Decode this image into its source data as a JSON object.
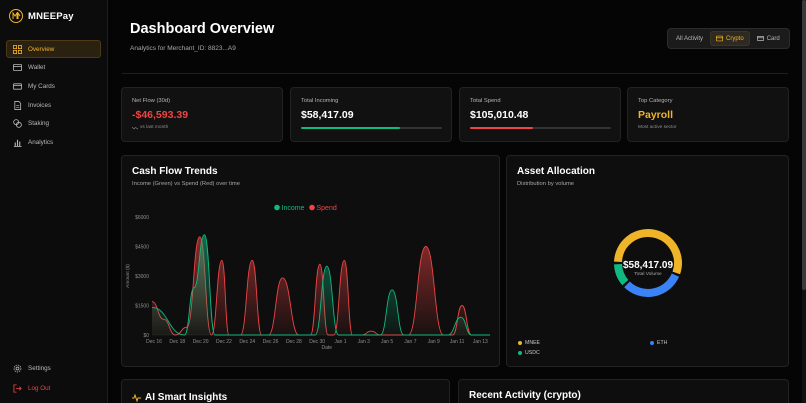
{
  "brand": {
    "name": "MNEEPay"
  },
  "sidebar": {
    "items": [
      {
        "label": "Overview",
        "icon": "grid-icon",
        "active": true
      },
      {
        "label": "Wallet",
        "icon": "wallet-icon"
      },
      {
        "label": "My Cards",
        "icon": "card-icon"
      },
      {
        "label": "Invoices",
        "icon": "document-icon"
      },
      {
        "label": "Staking",
        "icon": "coins-icon"
      },
      {
        "label": "Analytics",
        "icon": "bar-chart-icon"
      }
    ],
    "bottom": [
      {
        "label": "Settings",
        "icon": "gear-icon"
      },
      {
        "label": "Log Out",
        "icon": "logout-icon"
      }
    ]
  },
  "header": {
    "title": "Dashboard Overview",
    "subtitle": "Analytics for Merchant_ID: 8823...A9",
    "filters": [
      {
        "label": "All Activity",
        "active": false
      },
      {
        "label": "Crypto",
        "active": true,
        "icon": "wallet-icon"
      },
      {
        "label": "Card",
        "active": false,
        "icon": "card-icon"
      }
    ]
  },
  "stats": {
    "net_flow": {
      "label": "Net Flow (30d)",
      "value": "-$46,593.39",
      "foot": "vs last month"
    },
    "incoming": {
      "label": "Total Incoming",
      "value": "$58,417.09",
      "progress": 0.7
    },
    "spend": {
      "label": "Total Spend",
      "value": "$105,010.48",
      "progress": 0.45
    },
    "top_category": {
      "label": "Top Category",
      "value": "Payroll",
      "foot": "Most active sector"
    }
  },
  "cashflow": {
    "title": "Cash Flow Trends",
    "subtitle": "Income (Green) vs Spend (Red) over time"
  },
  "allocation": {
    "title": "Asset Allocation",
    "subtitle": "Distribution by volume",
    "total": "$58,417.09",
    "total_label": "Total Volume",
    "legend": [
      "MNEE",
      "ETH",
      "USDC"
    ]
  },
  "insights": {
    "title": "AI Smart Insights"
  },
  "recent": {
    "title": "Recent Activity (crypto)"
  },
  "colors": {
    "accent": "#f0b429",
    "income": "#10b981",
    "spend": "#ef4444",
    "eth": "#3b82f6"
  },
  "chart_data": [
    {
      "type": "area",
      "title": "",
      "xlabel": "Date",
      "ylabel": "Amount ($)",
      "x": [
        "Dec 16",
        "Dec 18",
        "Dec 20",
        "Dec 22",
        "Dec 24",
        "Dec 26",
        "Dec 28",
        "Dec 30",
        "Jan 1",
        "Jan 3",
        "Jan 5",
        "Jan 7",
        "Jan 9",
        "Jan 11",
        "Jan 13"
      ],
      "yticks": [
        "$0",
        "$1500",
        "$3000",
        "$4500",
        "$6000"
      ],
      "ylim": [
        0,
        6000
      ],
      "legend": [
        "Income",
        "Spend"
      ],
      "legend_position": "top-center",
      "series": [
        {
          "name": "Income",
          "points": [
            [
              0,
              1400
            ],
            [
              1.4,
              0
            ],
            [
              1.8,
              2400
            ],
            [
              2.25,
              5100
            ],
            [
              2.7,
              0
            ],
            [
              7.0,
              0
            ],
            [
              7.5,
              3500
            ],
            [
              8.0,
              0
            ],
            [
              9.8,
              0
            ],
            [
              10.3,
              2300
            ],
            [
              10.8,
              0
            ],
            [
              12.7,
              0
            ],
            [
              13.25,
              900
            ],
            [
              13.7,
              0
            ],
            [
              14.5,
              0
            ]
          ]
        },
        {
          "name": "Spend",
          "points": [
            [
              0,
              1700
            ],
            [
              0.5,
              800
            ],
            [
              1.0,
              0
            ],
            [
              1.5,
              400
            ],
            [
              2.05,
              5000
            ],
            [
              2.55,
              0
            ],
            [
              3.0,
              3800
            ],
            [
              3.3,
              0
            ],
            [
              3.8,
              0
            ],
            [
              4.3,
              3800
            ],
            [
              4.7,
              0
            ],
            [
              5.0,
              0
            ],
            [
              5.6,
              2900
            ],
            [
              6.3,
              0
            ],
            [
              6.8,
              0
            ],
            [
              7.2,
              3600
            ],
            [
              7.55,
              0
            ],
            [
              7.8,
              0
            ],
            [
              8.25,
              3800
            ],
            [
              8.6,
              0
            ],
            [
              9.0,
              0
            ],
            [
              9.4,
              200
            ],
            [
              9.8,
              0
            ],
            [
              11.0,
              0
            ],
            [
              11.75,
              4500
            ],
            [
              12.5,
              0
            ],
            [
              12.9,
              0
            ],
            [
              13.3,
              1500
            ],
            [
              13.7,
              0
            ],
            [
              14.5,
              0
            ]
          ]
        }
      ]
    },
    {
      "type": "pie",
      "title": "",
      "categories": [
        "MNEE",
        "ETH",
        "USDC"
      ],
      "values": [
        56,
        32,
        12
      ]
    }
  ]
}
